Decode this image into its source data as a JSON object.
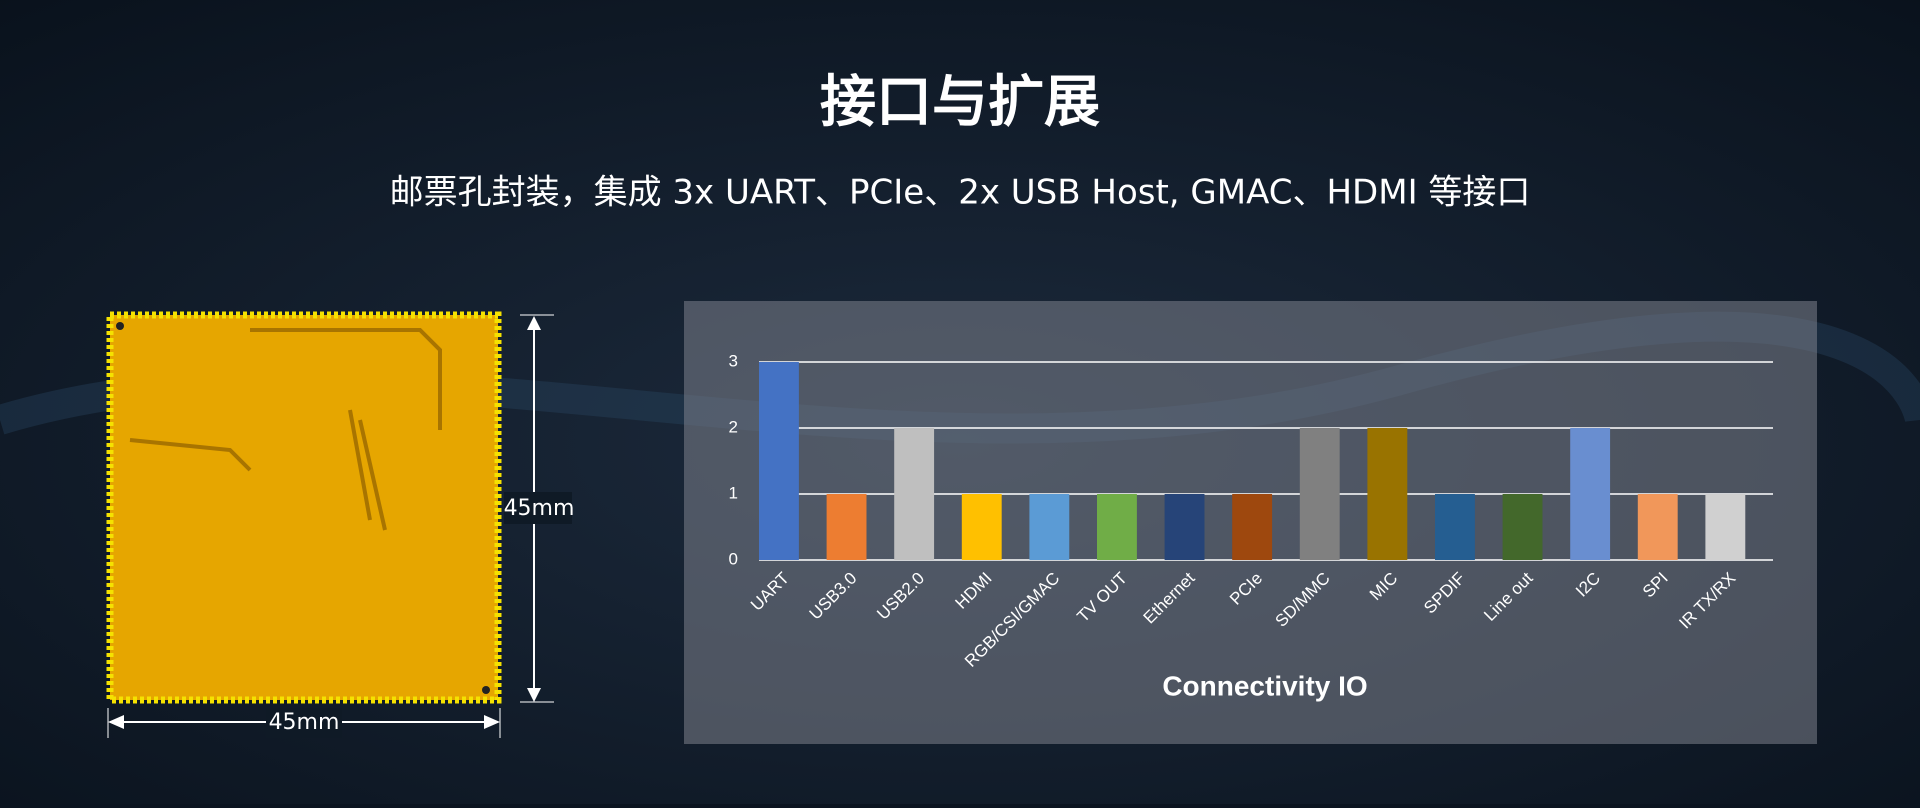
{
  "header": {
    "title": "接口与扩展",
    "subtitle": "邮票孔封装，集成 3x UART、PCIe、2x USB Host, GMAC、HDMI 等接口"
  },
  "board": {
    "height_label": "45mm",
    "width_label": "45mm"
  },
  "chart_data": {
    "type": "bar",
    "title": "Connectivity IO",
    "categories": [
      "UART",
      "USB3.0",
      "USB2.0",
      "HDMI",
      "RGB/CSI/GMAC",
      "TV OUT",
      "Ethernet",
      "PCIe",
      "SD/MMC",
      "MIC",
      "SPDIF",
      "Line out",
      "I2C",
      "SPI",
      "IR TX/RX"
    ],
    "values": [
      3,
      1,
      2,
      1,
      1,
      1,
      1,
      1,
      2,
      2,
      1,
      1,
      2,
      1,
      1
    ],
    "colors": [
      "#4472c4",
      "#ed7d31",
      "#bfbfbf",
      "#ffc000",
      "#5b9bd5",
      "#70ad47",
      "#264478",
      "#9e480e",
      "#808080",
      "#997300",
      "#255e91",
      "#43682b",
      "#698ed0",
      "#f1975a",
      "#d0d0d0"
    ],
    "ylim": [
      0,
      3
    ],
    "yticks": [
      0,
      1,
      2,
      3
    ],
    "grid": true
  }
}
